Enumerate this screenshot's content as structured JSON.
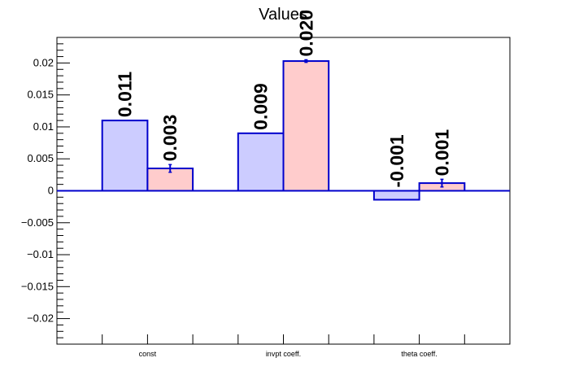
{
  "chart_data": {
    "type": "bar",
    "title": "Values",
    "xlabel": "",
    "ylabel": "",
    "categories": [
      "const",
      "invpt coeff.",
      "theta coeff."
    ],
    "series": [
      {
        "values": [
          0.011,
          0.009,
          -0.0014
        ],
        "errors": [
          0.0,
          0.0,
          0.0
        ],
        "labels": [
          "0.011",
          "0.009",
          "-0.001"
        ],
        "fill": "#ccccff",
        "stroke": "#0000cc"
      },
      {
        "values": [
          0.0035,
          0.0203,
          0.0012
        ],
        "errors": [
          0.0006,
          0.0002,
          0.0006
        ],
        "labels": [
          "0.003",
          "0.020",
          "0.001"
        ],
        "fill": "#ffcccc",
        "stroke": "#0000cc"
      }
    ],
    "ylim": [
      -0.024,
      0.024
    ],
    "yticks": [
      -0.02,
      -0.015,
      -0.01,
      -0.005,
      0,
      0.005,
      0.01,
      0.015,
      0.02
    ],
    "ytick_labels": [
      "−0.02",
      "−0.015",
      "−0.01",
      "−0.005",
      "0",
      "0.005",
      "0.01",
      "0.015",
      "0.02"
    ],
    "grid": false,
    "legend": "none"
  }
}
